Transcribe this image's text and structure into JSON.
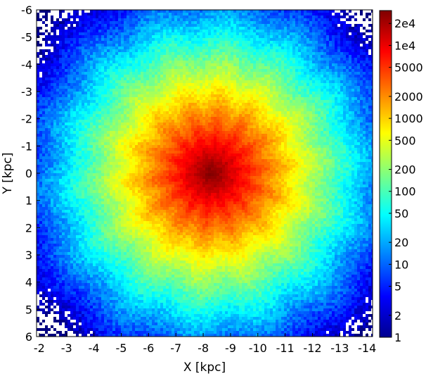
{
  "chart_data": {
    "type": "heatmap",
    "title": "",
    "xlabel": "X [kpc]",
    "ylabel": "Y [kpc]",
    "xlim": [
      -1.9,
      -14.2
    ],
    "ylim": [
      -6,
      6
    ],
    "x_axis_reversed": true,
    "y_axis_inverted": true,
    "x_ticks": [
      -2,
      -3,
      -4,
      -5,
      -6,
      -7,
      -8,
      -9,
      -10,
      -11,
      -12,
      -13,
      -14
    ],
    "x_tick_labels": [
      "-2",
      "-3",
      "-4",
      "-5",
      "-6",
      "-7",
      "-8",
      "-9",
      "-10",
      "-11",
      "-12",
      "-13",
      "-14"
    ],
    "y_ticks": [
      -6,
      -5,
      -4,
      -3,
      -2,
      -1,
      0,
      1,
      2,
      3,
      4,
      5,
      6
    ],
    "y_tick_labels": [
      "-6",
      "-5",
      "-4",
      "-3",
      "-2",
      "-1",
      "0",
      "1",
      "2",
      "3",
      "4",
      "5",
      "6"
    ],
    "grid": false,
    "colormap": "jet",
    "colorbar": {
      "scale": "log",
      "range": [
        1,
        30000
      ],
      "ticks": [
        1,
        2,
        5,
        10,
        20,
        50,
        100,
        200,
        500,
        1000,
        2000,
        5000,
        10000,
        20000
      ],
      "tick_labels": [
        "1",
        "2",
        "5",
        "10",
        "20",
        "50",
        "100",
        "200",
        "500",
        "1000",
        "2000",
        "5000",
        "1e4",
        "2e4"
      ]
    },
    "peak": {
      "x": -8.3,
      "y": 0.0,
      "value": 30000
    },
    "density_falloff_kpc": 2.1,
    "empty_bins_color": "#ffffff"
  }
}
